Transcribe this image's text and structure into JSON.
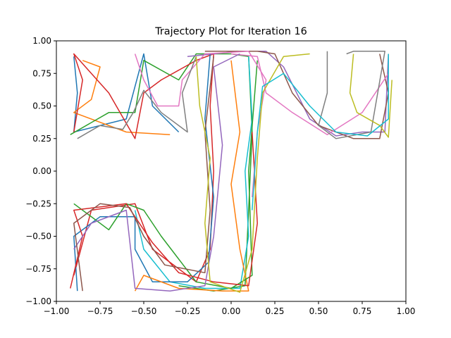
{
  "chart_data": {
    "type": "line",
    "title": "Trajectory Plot for Iteration 16",
    "xlabel": "",
    "ylabel": "",
    "xlim": [
      -1.0,
      1.0
    ],
    "ylim": [
      -1.0,
      1.0
    ],
    "grid": false,
    "x_ticks": [
      -1.0,
      -0.75,
      -0.5,
      -0.25,
      0.0,
      0.25,
      0.5,
      0.75,
      1.0
    ],
    "y_ticks": [
      -1.0,
      -0.75,
      -0.5,
      -0.25,
      0.0,
      0.25,
      0.5,
      0.75,
      1.0
    ],
    "x_tick_labels": [
      "−1.00",
      "−0.75",
      "−0.50",
      "−0.25",
      "0.00",
      "0.25",
      "0.50",
      "0.75",
      "1.00"
    ],
    "y_tick_labels": [
      "−1.00",
      "−0.75",
      "−0.50",
      "−0.25",
      "0.00",
      "0.25",
      "0.50",
      "0.75",
      "1.00"
    ],
    "colors": [
      "#1f77b4",
      "#ff7f0e",
      "#2ca02c",
      "#d62728",
      "#9467bd",
      "#8c564b",
      "#e377c2",
      "#7f7f7f",
      "#bcbd22",
      "#17becf"
    ],
    "series": [
      {
        "points": [
          [
            -0.9,
            0.88
          ],
          [
            -0.88,
            0.6
          ],
          [
            -0.9,
            0.3
          ],
          [
            -0.6,
            0.4
          ],
          [
            -0.5,
            0.9
          ],
          [
            -0.45,
            0.5
          ],
          [
            -0.3,
            0.3
          ]
        ]
      },
      {
        "points": [
          [
            -0.85,
            0.85
          ],
          [
            -0.75,
            0.8
          ],
          [
            -0.8,
            0.55
          ],
          [
            -0.9,
            0.45
          ],
          [
            -0.6,
            0.3
          ],
          [
            -0.35,
            0.28
          ]
        ]
      },
      {
        "points": [
          [
            -0.92,
            0.28
          ],
          [
            -0.7,
            0.45
          ],
          [
            -0.55,
            0.45
          ],
          [
            -0.5,
            0.85
          ],
          [
            -0.3,
            0.7
          ],
          [
            -0.2,
            0.9
          ],
          [
            0.0,
            0.9
          ],
          [
            0.1,
            0.88
          ],
          [
            0.12,
            0.3
          ],
          [
            0.1,
            -0.3
          ],
          [
            0.08,
            -0.88
          ],
          [
            -0.1,
            -0.92
          ],
          [
            -0.3,
            -0.88
          ]
        ]
      },
      {
        "points": [
          [
            -0.9,
            0.3
          ],
          [
            -0.85,
            0.7
          ],
          [
            -0.9,
            0.9
          ],
          [
            -0.7,
            0.6
          ],
          [
            -0.55,
            0.25
          ],
          [
            -0.5,
            0.6
          ],
          [
            -0.4,
            0.7
          ],
          [
            -0.2,
            0.85
          ],
          [
            -0.1,
            0.9
          ],
          [
            -0.12,
            0.5
          ],
          [
            -0.1,
            0.0
          ],
          [
            -0.12,
            -0.6
          ],
          [
            -0.2,
            -0.85
          ],
          [
            -0.45,
            -0.6
          ],
          [
            -0.55,
            -0.25
          ],
          [
            -0.8,
            -0.3
          ],
          [
            -0.9,
            -0.8
          ]
        ]
      },
      {
        "points": [
          [
            -0.25,
            0.88
          ],
          [
            0.05,
            0.92
          ],
          [
            0.2,
            0.92
          ],
          [
            0.3,
            0.8
          ],
          [
            0.45,
            0.4
          ],
          [
            0.6,
            0.27
          ],
          [
            0.75,
            0.3
          ],
          [
            0.88,
            0.3
          ],
          [
            0.9,
            0.9
          ]
        ]
      },
      {
        "points": [
          [
            -0.15,
            0.92
          ],
          [
            0.15,
            0.92
          ],
          [
            0.25,
            0.9
          ],
          [
            0.35,
            0.6
          ],
          [
            0.5,
            0.35
          ],
          [
            0.7,
            0.25
          ],
          [
            0.85,
            0.25
          ],
          [
            0.9,
            0.6
          ],
          [
            0.85,
            0.9
          ]
        ]
      },
      {
        "points": [
          [
            0.0,
            0.9
          ],
          [
            0.15,
            0.88
          ],
          [
            0.2,
            0.6
          ],
          [
            0.35,
            0.45
          ],
          [
            0.55,
            0.28
          ],
          [
            0.75,
            0.45
          ],
          [
            0.9,
            0.75
          ]
        ]
      },
      {
        "points": [
          [
            0.55,
            0.92
          ],
          [
            0.55,
            0.6
          ],
          [
            0.5,
            0.35
          ],
          [
            0.6,
            0.25
          ],
          [
            0.8,
            0.3
          ],
          [
            0.88,
            0.92
          ],
          [
            0.7,
            0.92
          ],
          [
            0.66,
            0.9
          ]
        ]
      },
      {
        "points": [
          [
            0.7,
            0.9
          ],
          [
            0.68,
            0.6
          ],
          [
            0.72,
            0.45
          ],
          [
            0.85,
            0.35
          ],
          [
            0.9,
            0.26
          ],
          [
            0.92,
            0.7
          ]
        ]
      },
      {
        "points": [
          [
            0.1,
            0.88
          ],
          [
            0.12,
            0.4
          ],
          [
            0.08,
            0.0
          ],
          [
            0.1,
            -0.5
          ],
          [
            0.05,
            -0.9
          ],
          [
            -0.15,
            -0.9
          ],
          [
            -0.35,
            -0.85
          ],
          [
            -0.5,
            -0.6
          ],
          [
            -0.55,
            -0.3
          ]
        ]
      },
      {
        "points": [
          [
            -0.12,
            0.9
          ],
          [
            -0.15,
            0.4
          ],
          [
            -0.1,
            -0.2
          ],
          [
            -0.13,
            -0.7
          ],
          [
            -0.25,
            -0.85
          ],
          [
            -0.45,
            -0.85
          ],
          [
            -0.55,
            -0.6
          ],
          [
            -0.55,
            -0.35
          ],
          [
            -0.75,
            -0.35
          ],
          [
            -0.9,
            -0.5
          ],
          [
            -0.88,
            -0.92
          ]
        ]
      },
      {
        "points": [
          [
            0.0,
            0.85
          ],
          [
            0.05,
            0.3
          ],
          [
            0.0,
            -0.1
          ],
          [
            0.05,
            -0.6
          ],
          [
            0.1,
            -0.92
          ],
          [
            -0.05,
            -0.92
          ],
          [
            -0.3,
            -0.9
          ],
          [
            -0.5,
            -0.8
          ],
          [
            -0.55,
            -0.92
          ]
        ]
      },
      {
        "points": [
          [
            -0.9,
            -0.25
          ],
          [
            -0.7,
            -0.45
          ],
          [
            -0.6,
            -0.25
          ],
          [
            -0.5,
            -0.3
          ],
          [
            -0.4,
            -0.5
          ],
          [
            -0.2,
            -0.85
          ],
          [
            0.0,
            -0.9
          ],
          [
            0.12,
            -0.8
          ],
          [
            0.1,
            0.0
          ],
          [
            0.15,
            0.85
          ]
        ]
      },
      {
        "points": [
          [
            -0.92,
            -0.9
          ],
          [
            -0.85,
            -0.5
          ],
          [
            -0.9,
            -0.3
          ],
          [
            -0.6,
            -0.25
          ],
          [
            -0.45,
            -0.55
          ],
          [
            -0.3,
            -0.78
          ],
          [
            -0.1,
            -0.85
          ],
          [
            0.1,
            -0.88
          ],
          [
            0.15,
            -0.4
          ],
          [
            0.12,
            0.3
          ]
        ]
      },
      {
        "points": [
          [
            -0.9,
            -0.6
          ],
          [
            -0.8,
            -0.4
          ],
          [
            -0.6,
            -0.3
          ],
          [
            -0.55,
            -0.9
          ],
          [
            -0.35,
            -0.92
          ],
          [
            -0.15,
            -0.88
          ],
          [
            -0.1,
            -0.5
          ],
          [
            -0.05,
            0.2
          ],
          [
            -0.1,
            0.8
          ],
          [
            0.05,
            0.9
          ]
        ]
      },
      {
        "points": [
          [
            -0.85,
            -0.92
          ],
          [
            -0.9,
            -0.4
          ],
          [
            -0.75,
            -0.25
          ],
          [
            -0.58,
            -0.28
          ],
          [
            -0.5,
            -0.5
          ],
          [
            -0.38,
            -0.72
          ],
          [
            -0.15,
            -0.78
          ],
          [
            -0.12,
            -0.3
          ],
          [
            -0.15,
            0.3
          ],
          [
            -0.1,
            0.88
          ]
        ]
      },
      {
        "points": [
          [
            -0.55,
            0.9
          ],
          [
            -0.5,
            0.7
          ],
          [
            -0.42,
            0.5
          ],
          [
            -0.3,
            0.5
          ],
          [
            -0.28,
            0.7
          ],
          [
            -0.15,
            0.9
          ],
          [
            0.1,
            0.92
          ],
          [
            0.2,
            0.7
          ],
          [
            0.15,
            0.3
          ],
          [
            0.12,
            -0.2
          ]
        ]
      },
      {
        "points": [
          [
            -0.88,
            0.25
          ],
          [
            -0.75,
            0.35
          ],
          [
            -0.62,
            0.32
          ],
          [
            -0.56,
            0.45
          ],
          [
            -0.5,
            0.62
          ],
          [
            -0.4,
            0.45
          ],
          [
            -0.25,
            0.3
          ],
          [
            -0.28,
            0.6
          ],
          [
            -0.2,
            0.88
          ]
        ]
      },
      {
        "points": [
          [
            -0.2,
            0.88
          ],
          [
            -0.18,
            0.5
          ],
          [
            -0.12,
            0.1
          ],
          [
            -0.15,
            -0.4
          ],
          [
            -0.12,
            -0.85
          ],
          [
            0.05,
            -0.93
          ],
          [
            0.12,
            -0.6
          ],
          [
            0.15,
            0.1
          ],
          [
            0.18,
            0.6
          ],
          [
            0.3,
            0.88
          ],
          [
            0.45,
            0.9
          ]
        ]
      },
      {
        "points": [
          [
            0.12,
            -0.3
          ],
          [
            0.15,
            0.3
          ],
          [
            0.18,
            0.65
          ],
          [
            0.3,
            0.75
          ],
          [
            0.45,
            0.5
          ],
          [
            0.6,
            0.3
          ],
          [
            0.78,
            0.27
          ],
          [
            0.9,
            0.4
          ],
          [
            0.9,
            0.9
          ]
        ]
      }
    ]
  }
}
